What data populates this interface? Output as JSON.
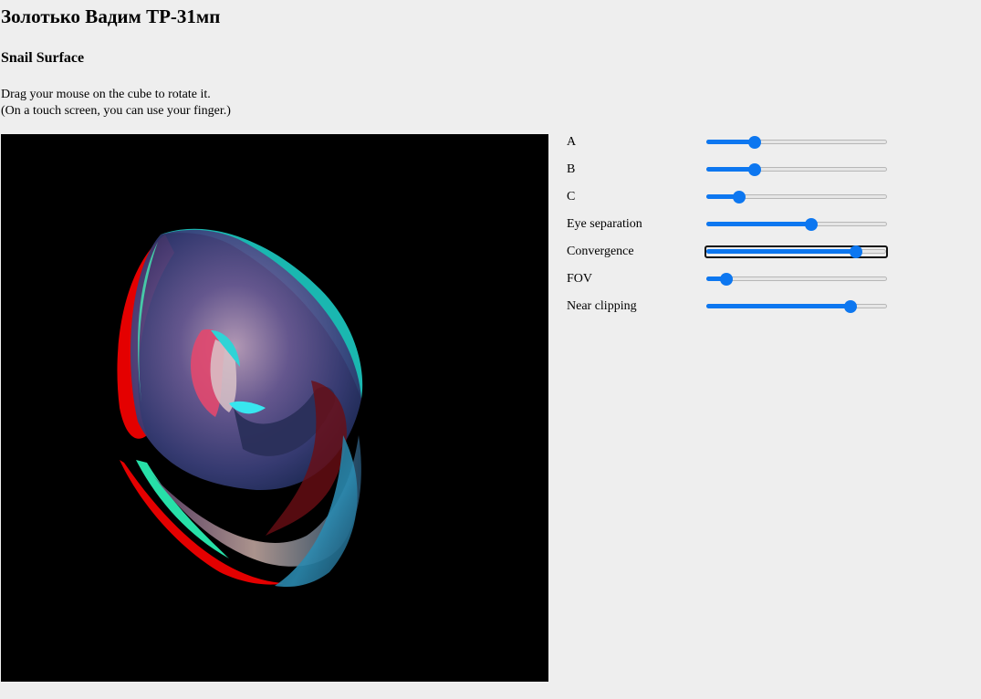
{
  "header": {
    "title": "Золотько Вадим ТР-31мп",
    "subtitle": "Snail Surface"
  },
  "instructions": {
    "line1": "Drag your mouse on the cube to rotate it.",
    "line2": "(On a touch screen, you can use your finger.)"
  },
  "controls": [
    {
      "label": "A",
      "value": 0.27
    },
    {
      "label": "B",
      "value": 0.27
    },
    {
      "label": "C",
      "value": 0.18
    },
    {
      "label": "Eye separation",
      "value": 0.58
    },
    {
      "label": "Convergence",
      "value": 0.83
    },
    {
      "label": "FOV",
      "value": 0.11
    },
    {
      "label": "Near clipping",
      "value": 0.8
    }
  ],
  "colors": {
    "accent": "#0d77f0",
    "background": "#eeeeee",
    "viewport": "#000000"
  }
}
